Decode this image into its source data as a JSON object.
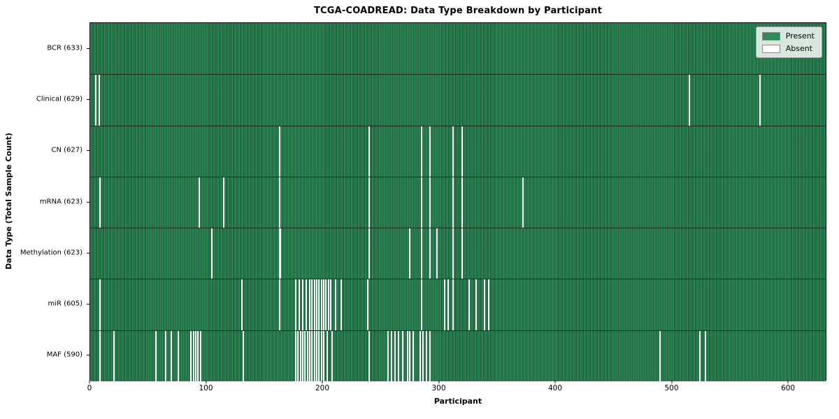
{
  "colors": {
    "present": "#2f8b5a",
    "present_stripe_dark": "#1d5c39",
    "absent": "#ffffff",
    "row_divider": "#0f2c1b",
    "legend_present_swatch": "#2e8b57",
    "legend_absent_swatch": "#ffffff"
  },
  "legend": {
    "present_label": "Present",
    "absent_label": "Absent"
  },
  "chart_data": {
    "type": "heatmap",
    "title": "TCGA-COADREAD: Data Type Breakdown by Participant",
    "xlabel": "Participant",
    "ylabel": "Data Type (Total Sample Count)",
    "x_range": [
      0,
      633
    ],
    "x_ticks": [
      0,
      100,
      200,
      300,
      400,
      500,
      600
    ],
    "legend_entries": [
      "Present",
      "Absent"
    ],
    "legend_position": "upper right",
    "rows": [
      {
        "label": "BCR (633)",
        "data_type": "BCR",
        "total": 633,
        "absent": []
      },
      {
        "label": "Clinical (629)",
        "data_type": "Clinical",
        "total": 629,
        "absent": [
          4,
          7,
          514,
          575
        ]
      },
      {
        "label": "CN (627)",
        "data_type": "CN",
        "total": 627,
        "absent": [
          162,
          239,
          284,
          291,
          311,
          319
        ]
      },
      {
        "label": "mRNA (623)",
        "data_type": "mRNA",
        "total": 623,
        "absent": [
          8,
          93,
          114,
          162,
          239,
          284,
          291,
          311,
          319,
          371
        ]
      },
      {
        "label": "Methylation (623)",
        "data_type": "Methylation",
        "total": 623,
        "absent": [
          104,
          162,
          163,
          239,
          274,
          284,
          291,
          297,
          311,
          319
        ]
      },
      {
        "label": "miR (605)",
        "data_type": "miR",
        "total": 605,
        "absent": [
          8,
          130,
          162,
          176,
          179,
          182,
          185,
          188,
          190,
          192,
          194,
          196,
          198,
          200,
          202,
          204,
          206,
          210,
          215,
          238,
          284,
          304,
          307,
          311,
          325,
          331,
          338,
          342
        ]
      },
      {
        "label": "MAF (590)",
        "data_type": "MAF",
        "total": 590,
        "absent": [
          8,
          20,
          56,
          64,
          69,
          75,
          86,
          88,
          90,
          92,
          94,
          131,
          176,
          178,
          180,
          182,
          184,
          186,
          188,
          190,
          192,
          194,
          196,
          198,
          200,
          203,
          207,
          239,
          255,
          258,
          261,
          264,
          268,
          272,
          274,
          277,
          283,
          285,
          288,
          291,
          489,
          523,
          528
        ]
      }
    ]
  }
}
